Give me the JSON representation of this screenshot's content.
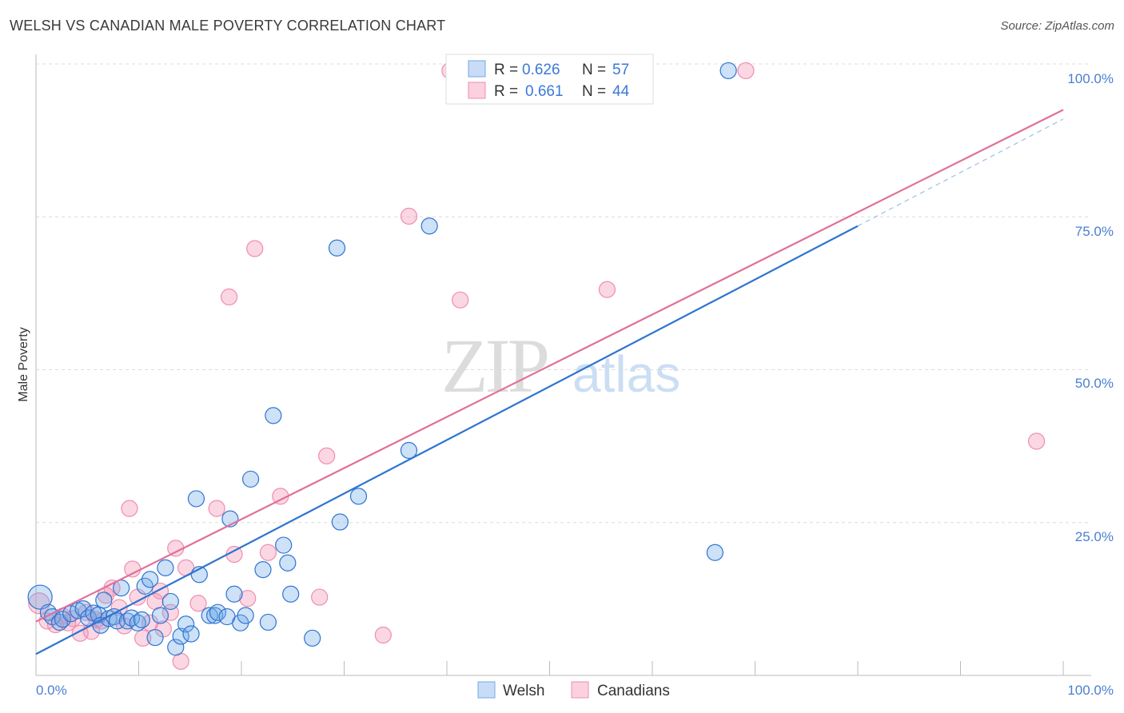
{
  "header": {
    "title": "WELSH VS CANADIAN MALE POVERTY CORRELATION CHART",
    "source": "Source: ZipAtlas.com"
  },
  "legend_top": {
    "row1": {
      "r_label": "R =",
      "r_value": "0.626",
      "n_label": "N =",
      "n_value": "57"
    },
    "row2": {
      "r_label": "R =",
      "r_value": "0.661",
      "n_label": "N =",
      "n_value": "44"
    }
  },
  "legend_bottom": {
    "welsh": "Welsh",
    "canadians": "Canadians"
  },
  "colors": {
    "welsh": "#6fa8e8",
    "welsh_line": "#2f74d0",
    "canadians": "#f08db0",
    "canadians_line": "#e0709a"
  },
  "chart_data": {
    "type": "scatter",
    "title": "WELSH VS CANADIAN MALE POVERTY CORRELATION CHART",
    "ylabel": "Male Poverty",
    "xlabel": "",
    "xlim": [
      0,
      100
    ],
    "ylim": [
      0,
      100
    ],
    "x_tick_labels": [
      "0.0%",
      "100.0%"
    ],
    "y_tick_labels": [
      "25.0%",
      "50.0%",
      "75.0%",
      "100.0%"
    ],
    "grid": true,
    "legend_position": "top-center",
    "watermark": "ZIPatlas",
    "series": [
      {
        "name": "Welsh",
        "R": 0.626,
        "N": 57,
        "trend": {
          "x0": 0,
          "y0": 3.5,
          "x1": 80,
          "y1": 73.5,
          "dashed_to": [
            100,
            91
          ]
        },
        "points": [
          [
            0.4,
            12.8
          ],
          [
            1.2,
            10.3
          ],
          [
            1.6,
            9.6
          ],
          [
            2.3,
            8.7
          ],
          [
            2.6,
            9.2
          ],
          [
            3.4,
            10.1
          ],
          [
            4.1,
            10.6
          ],
          [
            4.6,
            10.9
          ],
          [
            5.1,
            9.4
          ],
          [
            5.6,
            10.2
          ],
          [
            6.1,
            9.9
          ],
          [
            6.3,
            8.2
          ],
          [
            6.6,
            12.3
          ],
          [
            7.1,
            9.3
          ],
          [
            7.6,
            9.6
          ],
          [
            7.9,
            8.9
          ],
          [
            8.3,
            14.3
          ],
          [
            8.9,
            8.9
          ],
          [
            9.3,
            9.4
          ],
          [
            9.9,
            8.6
          ],
          [
            10.3,
            9.1
          ],
          [
            10.6,
            14.6
          ],
          [
            11.1,
            15.7
          ],
          [
            11.6,
            6.2
          ],
          [
            12.1,
            9.8
          ],
          [
            12.6,
            17.6
          ],
          [
            13.1,
            12.1
          ],
          [
            13.6,
            4.6
          ],
          [
            14.1,
            6.4
          ],
          [
            14.6,
            8.4
          ],
          [
            15.1,
            6.8
          ],
          [
            15.6,
            28.9
          ],
          [
            15.9,
            16.5
          ],
          [
            16.9,
            9.8
          ],
          [
            17.4,
            9.8
          ],
          [
            17.7,
            10.3
          ],
          [
            18.6,
            9.6
          ],
          [
            18.9,
            25.6
          ],
          [
            19.3,
            13.3
          ],
          [
            19.9,
            8.6
          ],
          [
            20.4,
            9.8
          ],
          [
            20.9,
            32.1
          ],
          [
            22.1,
            17.3
          ],
          [
            22.6,
            8.7
          ],
          [
            23.1,
            42.5
          ],
          [
            24.1,
            21.3
          ],
          [
            24.5,
            18.4
          ],
          [
            24.8,
            13.3
          ],
          [
            26.9,
            6.1
          ],
          [
            29.3,
            69.9
          ],
          [
            29.6,
            25.1
          ],
          [
            31.4,
            29.3
          ],
          [
            36.3,
            36.8
          ],
          [
            38.3,
            73.5
          ],
          [
            45.3,
            98.9
          ],
          [
            66.1,
            20.1
          ],
          [
            67.4,
            98.9
          ]
        ]
      },
      {
        "name": "Canadians",
        "R": 0.661,
        "N": 44,
        "trend": {
          "x0": 0,
          "y0": 8.8,
          "x1": 100,
          "y1": 92.5
        },
        "points": [
          [
            0.3,
            11.8
          ],
          [
            1.1,
            8.9
          ],
          [
            1.9,
            8.3
          ],
          [
            2.6,
            9.7
          ],
          [
            3.1,
            8.6
          ],
          [
            3.6,
            9.3
          ],
          [
            4.3,
            6.9
          ],
          [
            4.9,
            10.3
          ],
          [
            5.4,
            7.2
          ],
          [
            5.9,
            9.1
          ],
          [
            6.4,
            8.9
          ],
          [
            6.8,
            13.1
          ],
          [
            7.4,
            14.3
          ],
          [
            8.1,
            11.1
          ],
          [
            8.6,
            8.1
          ],
          [
            9.1,
            27.3
          ],
          [
            9.4,
            17.4
          ],
          [
            9.9,
            12.8
          ],
          [
            10.4,
            6.1
          ],
          [
            11.1,
            8.6
          ],
          [
            11.6,
            12.1
          ],
          [
            12.1,
            13.8
          ],
          [
            12.4,
            7.6
          ],
          [
            13.1,
            10.3
          ],
          [
            13.6,
            20.8
          ],
          [
            14.1,
            2.3
          ],
          [
            14.6,
            17.6
          ],
          [
            15.8,
            11.8
          ],
          [
            17.6,
            27.3
          ],
          [
            18.8,
            61.9
          ],
          [
            19.3,
            19.8
          ],
          [
            20.6,
            12.6
          ],
          [
            21.3,
            69.8
          ],
          [
            22.6,
            20.1
          ],
          [
            23.8,
            29.3
          ],
          [
            27.6,
            12.8
          ],
          [
            28.3,
            35.9
          ],
          [
            33.8,
            6.6
          ],
          [
            36.3,
            75.1
          ],
          [
            40.3,
            98.9
          ],
          [
            41.3,
            61.4
          ],
          [
            55.6,
            63.1
          ],
          [
            69.1,
            98.9
          ],
          [
            97.4,
            38.3
          ]
        ]
      }
    ]
  }
}
